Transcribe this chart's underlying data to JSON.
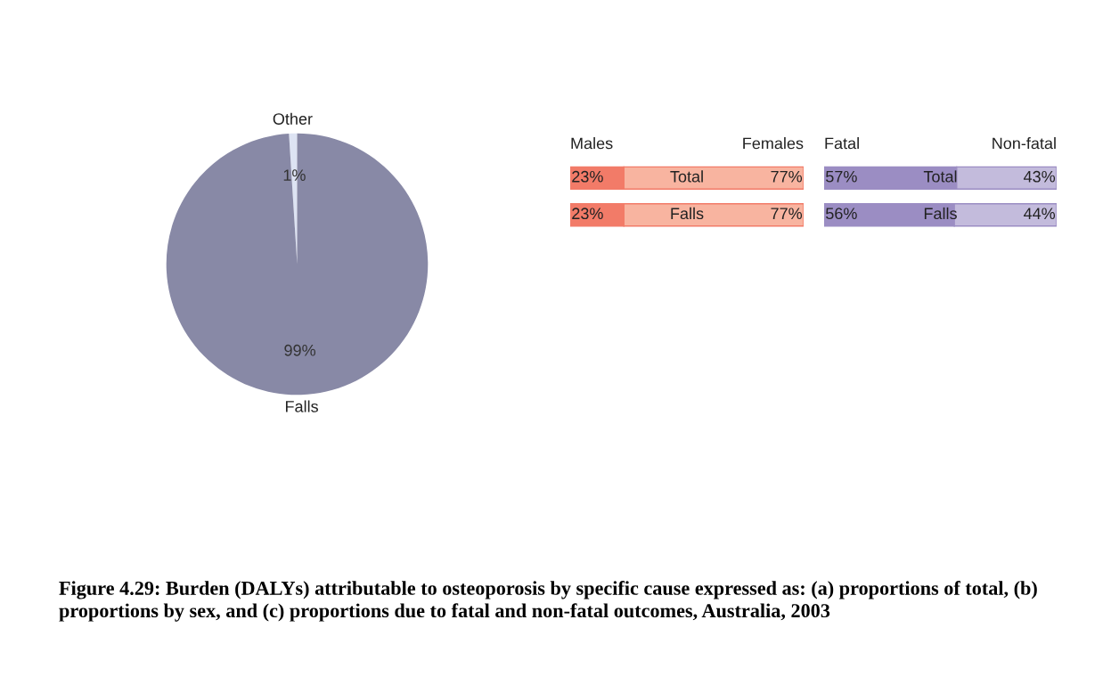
{
  "chart_data": [
    {
      "type": "pie",
      "categories": [
        "Other",
        "Falls"
      ],
      "values": [
        1,
        99
      ],
      "colors": [
        "#dde3f3",
        "#8889a6"
      ],
      "value_labels": [
        "1%",
        "99%"
      ],
      "legend": false,
      "annotations": [
        "Figure 4.29: Burden (DALYs) attributable to osteoporosis by specific cause expressed as: (a) proportions of total, (b) proportions by sex, and (c) proportions due to fatal and non-fatal outcomes, Australia, 2003"
      ]
    },
    {
      "type": "bar",
      "orientation": "horizontal",
      "stacked": true,
      "tick_labels": false,
      "legend": false,
      "categories": [
        "Total",
        "Falls"
      ],
      "series": [
        {
          "name": "Males",
          "color": "#f27b68",
          "values": [
            23,
            23
          ],
          "value_labels": [
            "23%",
            "23%"
          ]
        },
        {
          "name": "Females",
          "color": "#f8b4a0",
          "values": [
            77,
            77
          ],
          "value_labels": [
            "77%",
            "77%"
          ]
        }
      ]
    },
    {
      "type": "bar",
      "orientation": "horizontal",
      "stacked": true,
      "tick_labels": false,
      "legend": false,
      "categories": [
        "Total",
        "Falls"
      ],
      "series": [
        {
          "name": "Fatal",
          "color": "#9b8dc3",
          "values": [
            57,
            56
          ],
          "value_labels": [
            "57%",
            "56%"
          ]
        },
        {
          "name": "Non-fatal",
          "color": "#c3bbdc",
          "values": [
            43,
            44
          ],
          "value_labels": [
            "43%",
            "44%"
          ]
        }
      ]
    }
  ]
}
